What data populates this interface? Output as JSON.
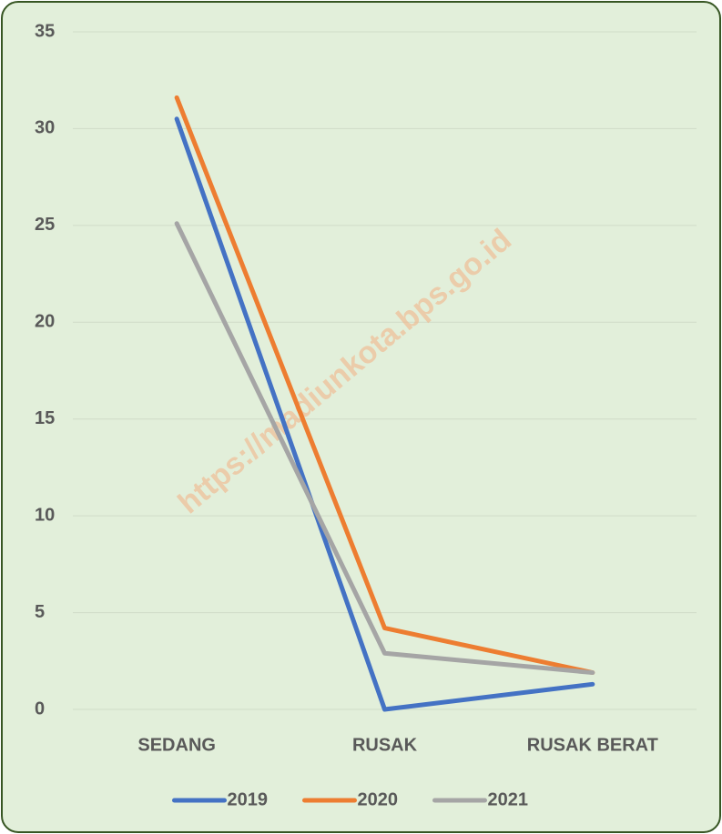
{
  "chart_data": {
    "type": "line",
    "categories": [
      "SEDANG",
      "RUSAK",
      "RUSAK BERAT"
    ],
    "series": [
      {
        "name": "2019",
        "color": "#4472c4",
        "values": [
          30.5,
          0,
          1.3
        ]
      },
      {
        "name": "2020",
        "color": "#ed7d31",
        "values": [
          31.6,
          4.2,
          1.9
        ]
      },
      {
        "name": "2021",
        "color": "#a5a5a5",
        "values": [
          25.1,
          2.9,
          1.9
        ]
      }
    ],
    "ylim": [
      0,
      35
    ],
    "yticks": [
      0,
      5,
      10,
      15,
      20,
      25,
      30,
      35
    ],
    "grid": true,
    "legend": "bottom",
    "watermark": "https://madiunkota.bps.go.id"
  }
}
